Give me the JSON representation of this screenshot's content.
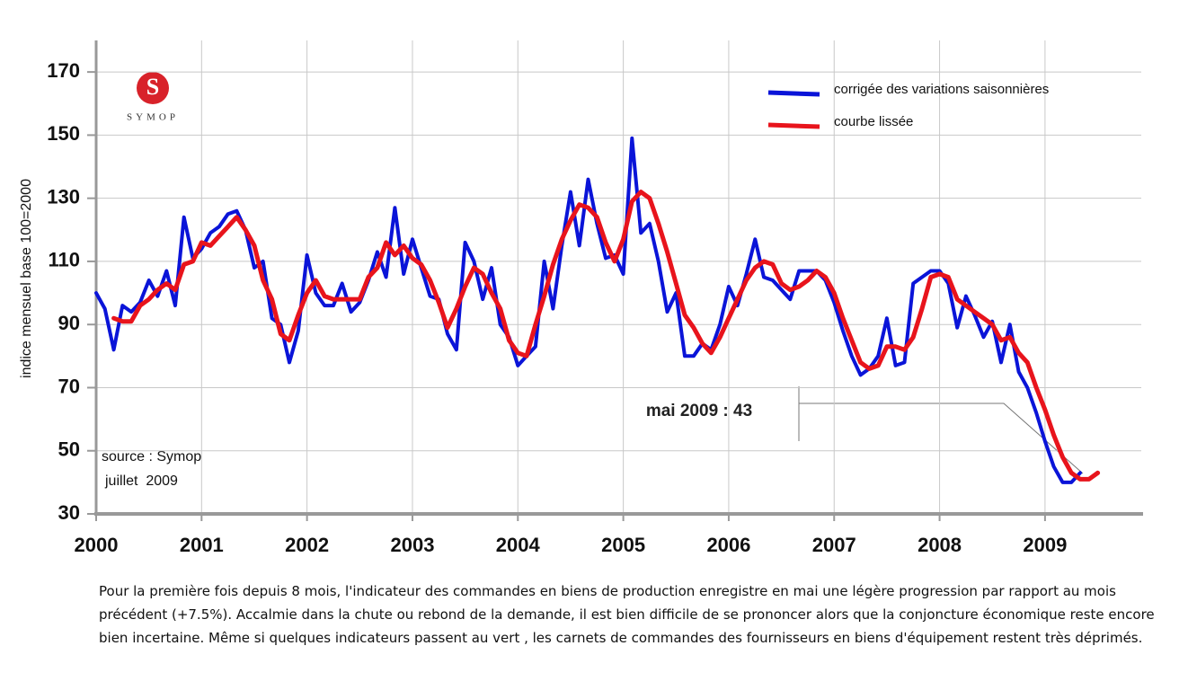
{
  "chart_data": {
    "type": "line",
    "y_label": "indice mensuel base 100=2000",
    "logo": "SYMOP",
    "source": "source : Symop",
    "source_date": "juillet  2009",
    "annotation": "mai 2009 : 43",
    "caption": "Pour la première fois depuis 8 mois, l'indicateur des commandes en biens de production enregistre en mai une légère progression par rapport au mois précédent (+7.5%). Accalmie dans la chute ou rebond de la demande, il est bien difficile de se prononcer alors que la conjoncture économique reste encore bien incertaine. Même si quelques indicateurs passent au vert , les carnets de commandes des fournisseurs en biens d'équipement restent très déprimés.",
    "legend": "upper right",
    "grid": true,
    "xlim": [
      2000,
      2009.93
    ],
    "xticks": [
      2000,
      2001,
      2002,
      2003,
      2004,
      2005,
      2006,
      2007,
      2008,
      2009
    ],
    "ylim": [
      30,
      180
    ],
    "yticks": [
      30,
      50,
      70,
      90,
      110,
      130,
      150,
      170
    ],
    "x": [
      2000,
      2000.083,
      2000.167,
      2000.25,
      2000.333,
      2000.417,
      2000.5,
      2000.583,
      2000.667,
      2000.75,
      2000.833,
      2000.917,
      2001,
      2001.083,
      2001.167,
      2001.25,
      2001.333,
      2001.417,
      2001.5,
      2001.583,
      2001.667,
      2001.75,
      2001.833,
      2001.917,
      2002,
      2002.083,
      2002.167,
      2002.25,
      2002.333,
      2002.417,
      2002.5,
      2002.583,
      2002.667,
      2002.75,
      2002.833,
      2002.917,
      2003,
      2003.083,
      2003.167,
      2003.25,
      2003.333,
      2003.417,
      2003.5,
      2003.583,
      2003.667,
      2003.75,
      2003.833,
      2003.917,
      2004,
      2004.083,
      2004.167,
      2004.25,
      2004.333,
      2004.417,
      2004.5,
      2004.583,
      2004.667,
      2004.75,
      2004.833,
      2004.917,
      2005,
      2005.083,
      2005.167,
      2005.25,
      2005.333,
      2005.417,
      2005.5,
      2005.583,
      2005.667,
      2005.75,
      2005.833,
      2005.917,
      2006,
      2006.083,
      2006.167,
      2006.25,
      2006.333,
      2006.417,
      2006.5,
      2006.583,
      2006.667,
      2006.75,
      2006.833,
      2006.917,
      2007,
      2007.083,
      2007.167,
      2007.25,
      2007.333,
      2007.417,
      2007.5,
      2007.583,
      2007.667,
      2007.75,
      2007.833,
      2007.917,
      2008,
      2008.083,
      2008.167,
      2008.25,
      2008.333,
      2008.417,
      2008.5,
      2008.583,
      2008.667,
      2008.75,
      2008.833,
      2008.917,
      2009,
      2009.083,
      2009.167,
      2009.25,
      2009.333,
      2009.417,
      2009.5
    ],
    "series": [
      {
        "name": "corrigée des variations saisonnières",
        "color": "#0a14d8",
        "values": [
          100,
          95,
          82,
          96,
          94,
          97,
          104,
          99,
          107,
          96,
          124,
          111,
          114,
          119,
          121,
          125,
          126,
          120,
          108,
          110,
          92,
          90,
          78,
          88,
          112,
          100,
          96,
          96,
          103,
          94,
          97,
          104,
          113,
          105,
          127,
          106,
          117,
          108,
          99,
          98,
          87,
          82,
          116,
          110,
          98,
          108,
          90,
          86,
          77,
          80,
          83,
          110,
          95,
          115,
          132,
          115,
          136,
          122,
          111,
          112,
          106,
          149,
          119,
          122,
          110,
          94,
          100,
          80,
          80,
          84,
          82,
          90,
          102,
          96,
          106,
          117,
          105,
          104,
          101,
          98,
          107,
          107,
          107,
          104,
          97,
          88,
          80,
          74,
          76,
          80,
          92,
          77,
          78,
          103,
          105,
          107,
          107,
          103,
          89,
          99,
          93,
          86,
          91,
          78,
          90,
          75,
          70,
          62,
          53,
          45,
          40,
          40,
          43,
          null,
          null
        ]
      },
      {
        "name": "courbe lissée",
        "color": "#e8141c",
        "values": [
          null,
          null,
          92,
          91,
          91,
          96,
          98,
          101,
          103,
          101,
          109,
          110,
          116,
          115,
          118,
          121,
          124,
          120,
          115,
          104,
          98,
          87,
          85,
          93,
          100,
          104,
          99,
          98,
          98,
          98,
          98,
          105,
          108,
          116,
          112,
          115,
          111,
          109,
          104,
          97,
          89,
          95,
          102,
          108,
          106,
          100,
          95,
          85,
          81,
          80,
          90,
          99,
          109,
          117,
          123,
          128,
          127,
          124,
          116,
          110,
          117,
          129,
          132,
          130,
          122,
          113,
          103,
          93,
          89,
          84,
          81,
          86,
          92,
          98,
          104,
          108,
          110,
          109,
          103,
          101,
          102,
          104,
          107,
          105,
          100,
          92,
          85,
          78,
          76,
          77,
          83,
          83,
          82,
          86,
          95,
          105,
          106,
          105,
          98,
          96,
          94,
          92,
          90,
          85,
          86,
          81,
          78,
          70,
          63,
          55,
          48,
          43,
          41,
          41,
          43
        ]
      }
    ]
  }
}
